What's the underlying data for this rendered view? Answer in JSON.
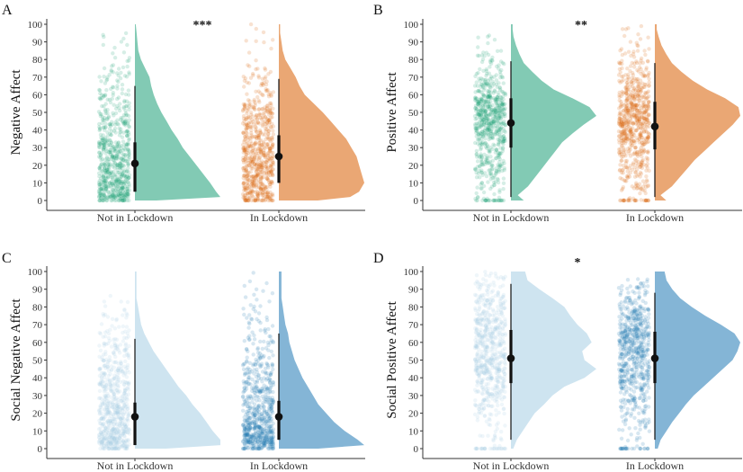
{
  "chart_data": [
    {
      "panel": "A",
      "type": "raincloud",
      "ylabel": "Negative Affect",
      "ylim": [
        0,
        100
      ],
      "yticks": [
        "0",
        "10",
        "20",
        "30",
        "40",
        "50",
        "60",
        "70",
        "80",
        "90",
        "100"
      ],
      "categories": [
        "Not in Lockdown",
        "In Lockdown"
      ],
      "significance": "***",
      "groups": [
        {
          "name": "Not in Lockdown",
          "color": "#1b9e77",
          "median": 21,
          "q1": 5,
          "q3": 33,
          "lower": 5,
          "upper": 65,
          "density": [
            [
              0,
              0.25
            ],
            [
              2,
              1.0
            ],
            [
              5,
              0.95
            ],
            [
              10,
              0.88
            ],
            [
              15,
              0.8
            ],
            [
              20,
              0.72
            ],
            [
              25,
              0.64
            ],
            [
              30,
              0.56
            ],
            [
              35,
              0.5
            ],
            [
              40,
              0.43
            ],
            [
              45,
              0.37
            ],
            [
              50,
              0.31
            ],
            [
              55,
              0.26
            ],
            [
              60,
              0.22
            ],
            [
              65,
              0.19
            ],
            [
              70,
              0.17
            ],
            [
              75,
              0.12
            ],
            [
              80,
              0.07
            ],
            [
              85,
              0.04
            ],
            [
              90,
              0.03
            ],
            [
              95,
              0.02
            ],
            [
              100,
              0.01
            ]
          ],
          "scatter_max": 100
        },
        {
          "name": "In Lockdown",
          "color": "#d95f02",
          "median": 25,
          "q1": 10,
          "q3": 37,
          "lower": 10,
          "upper": 69,
          "density": [
            [
              0,
              0.3
            ],
            [
              2,
              0.55
            ],
            [
              5,
              0.62
            ],
            [
              10,
              0.66
            ],
            [
              15,
              0.64
            ],
            [
              20,
              0.62
            ],
            [
              25,
              0.6
            ],
            [
              30,
              0.56
            ],
            [
              35,
              0.52
            ],
            [
              40,
              0.46
            ],
            [
              45,
              0.4
            ],
            [
              50,
              0.34
            ],
            [
              55,
              0.27
            ],
            [
              60,
              0.2
            ],
            [
              65,
              0.16
            ],
            [
              70,
              0.13
            ],
            [
              75,
              0.09
            ],
            [
              80,
              0.05
            ],
            [
              85,
              0.03
            ],
            [
              90,
              0.02
            ],
            [
              95,
              0.01
            ],
            [
              100,
              0.01
            ]
          ],
          "scatter_max": 100
        }
      ]
    },
    {
      "panel": "B",
      "type": "raincloud",
      "ylabel": "Positive Affect",
      "ylim": [
        0,
        100
      ],
      "yticks": [
        "0",
        "10",
        "20",
        "30",
        "40",
        "50",
        "60",
        "70",
        "80",
        "90",
        "100"
      ],
      "categories": [
        "Not in Lockdown",
        "In Lockdown"
      ],
      "significance": "**",
      "groups": [
        {
          "name": "Not in Lockdown",
          "color": "#1b9e77",
          "median": 44,
          "q1": 30,
          "q3": 58,
          "lower": 2,
          "upper": 79,
          "density": [
            [
              0,
              0.15
            ],
            [
              3,
              0.08
            ],
            [
              8,
              0.2
            ],
            [
              13,
              0.28
            ],
            [
              18,
              0.36
            ],
            [
              23,
              0.44
            ],
            [
              28,
              0.52
            ],
            [
              33,
              0.6
            ],
            [
              38,
              0.72
            ],
            [
              43,
              0.85
            ],
            [
              48,
              1.0
            ],
            [
              53,
              0.92
            ],
            [
              58,
              0.72
            ],
            [
              63,
              0.5
            ],
            [
              68,
              0.36
            ],
            [
              73,
              0.25
            ],
            [
              78,
              0.15
            ],
            [
              83,
              0.1
            ],
            [
              88,
              0.06
            ],
            [
              93,
              0.03
            ],
            [
              97,
              0.02
            ],
            [
              100,
              0.02
            ]
          ],
          "scatter_max": 100
        },
        {
          "name": "In Lockdown",
          "color": "#d95f02",
          "median": 42,
          "q1": 29,
          "q3": 56,
          "lower": 2,
          "upper": 78,
          "density": [
            [
              0,
              0.12
            ],
            [
              3,
              0.06
            ],
            [
              8,
              0.18
            ],
            [
              13,
              0.26
            ],
            [
              18,
              0.34
            ],
            [
              23,
              0.42
            ],
            [
              28,
              0.52
            ],
            [
              33,
              0.62
            ],
            [
              38,
              0.72
            ],
            [
              43,
              0.82
            ],
            [
              48,
              0.9
            ],
            [
              53,
              0.88
            ],
            [
              58,
              0.74
            ],
            [
              63,
              0.55
            ],
            [
              68,
              0.4
            ],
            [
              73,
              0.28
            ],
            [
              78,
              0.18
            ],
            [
              83,
              0.12
            ],
            [
              88,
              0.07
            ],
            [
              93,
              0.04
            ],
            [
              97,
              0.02
            ],
            [
              100,
              0.02
            ]
          ],
          "scatter_max": 100
        }
      ]
    },
    {
      "panel": "C",
      "type": "raincloud",
      "ylabel": "Social Negative Affect",
      "ylim": [
        0,
        100
      ],
      "yticks": [
        "0",
        "10",
        "20",
        "30",
        "40",
        "50",
        "60",
        "70",
        "80",
        "90",
        "100"
      ],
      "categories": [
        "Not in Lockdown",
        "In Lockdown"
      ],
      "significance": "",
      "groups": [
        {
          "name": "Not in Lockdown",
          "color": "#a6cee3",
          "median": 18,
          "q1": 2,
          "q3": 26,
          "lower": 2,
          "upper": 62,
          "density": [
            [
              0,
              0.2
            ],
            [
              2,
              0.55
            ],
            [
              5,
              0.55
            ],
            [
              10,
              0.5
            ],
            [
              15,
              0.46
            ],
            [
              20,
              0.42
            ],
            [
              25,
              0.37
            ],
            [
              30,
              0.33
            ],
            [
              35,
              0.28
            ],
            [
              40,
              0.24
            ],
            [
              45,
              0.2
            ],
            [
              50,
              0.16
            ],
            [
              55,
              0.12
            ],
            [
              60,
              0.09
            ],
            [
              65,
              0.06
            ],
            [
              70,
              0.04
            ],
            [
              75,
              0.03
            ],
            [
              80,
              0.02
            ],
            [
              85,
              0.01
            ],
            [
              90,
              0.01
            ],
            [
              95,
              0.01
            ],
            [
              100,
              0.01
            ]
          ],
          "scatter_max": 96
        },
        {
          "name": "In Lockdown",
          "color": "#1f78b4",
          "median": 18,
          "q1": 5,
          "q3": 27,
          "lower": 5,
          "upper": 65,
          "density": [
            [
              0,
              0.3
            ],
            [
              2,
              0.65
            ],
            [
              5,
              0.6
            ],
            [
              10,
              0.5
            ],
            [
              15,
              0.42
            ],
            [
              20,
              0.36
            ],
            [
              25,
              0.3
            ],
            [
              30,
              0.26
            ],
            [
              35,
              0.22
            ],
            [
              40,
              0.18
            ],
            [
              45,
              0.15
            ],
            [
              50,
              0.12
            ],
            [
              55,
              0.1
            ],
            [
              60,
              0.08
            ],
            [
              65,
              0.07
            ],
            [
              70,
              0.05
            ],
            [
              75,
              0.04
            ],
            [
              80,
              0.03
            ],
            [
              85,
              0.02
            ],
            [
              90,
              0.02
            ],
            [
              95,
              0.02
            ],
            [
              100,
              0.02
            ]
          ],
          "scatter_max": 100
        }
      ]
    },
    {
      "panel": "D",
      "type": "raincloud",
      "ylabel": "Social Positive Affect",
      "ylim": [
        0,
        100
      ],
      "yticks": [
        "0",
        "10",
        "20",
        "30",
        "40",
        "50",
        "60",
        "70",
        "80",
        "90",
        "100"
      ],
      "categories": [
        "Not in Lockdown",
        "In Lockdown"
      ],
      "significance": "*",
      "groups": [
        {
          "name": "Not in Lockdown",
          "color": "#a6cee3",
          "median": 51,
          "q1": 37,
          "q3": 67,
          "lower": 5,
          "upper": 93,
          "density": [
            [
              0,
              0.02
            ],
            [
              5,
              0.05
            ],
            [
              10,
              0.1
            ],
            [
              15,
              0.15
            ],
            [
              20,
              0.2
            ],
            [
              25,
              0.28
            ],
            [
              30,
              0.35
            ],
            [
              35,
              0.45
            ],
            [
              40,
              0.62
            ],
            [
              45,
              0.72
            ],
            [
              50,
              0.62
            ],
            [
              55,
              0.6
            ],
            [
              60,
              0.68
            ],
            [
              65,
              0.64
            ],
            [
              70,
              0.56
            ],
            [
              75,
              0.5
            ],
            [
              80,
              0.45
            ],
            [
              85,
              0.35
            ],
            [
              90,
              0.24
            ],
            [
              95,
              0.14
            ],
            [
              100,
              0.12
            ]
          ],
          "scatter_max": 100
        },
        {
          "name": "In Lockdown",
          "color": "#1f78b4",
          "median": 51,
          "q1": 37,
          "q3": 66,
          "lower": 5,
          "upper": 88,
          "density": [
            [
              0,
              0.03
            ],
            [
              5,
              0.06
            ],
            [
              10,
              0.12
            ],
            [
              15,
              0.18
            ],
            [
              20,
              0.25
            ],
            [
              25,
              0.32
            ],
            [
              30,
              0.4
            ],
            [
              35,
              0.5
            ],
            [
              40,
              0.6
            ],
            [
              45,
              0.7
            ],
            [
              50,
              0.8
            ],
            [
              55,
              0.85
            ],
            [
              60,
              0.88
            ],
            [
              65,
              0.82
            ],
            [
              70,
              0.68
            ],
            [
              75,
              0.52
            ],
            [
              80,
              0.38
            ],
            [
              85,
              0.26
            ],
            [
              90,
              0.18
            ],
            [
              95,
              0.12
            ],
            [
              100,
              0.1
            ]
          ],
          "scatter_max": 100
        }
      ]
    }
  ]
}
